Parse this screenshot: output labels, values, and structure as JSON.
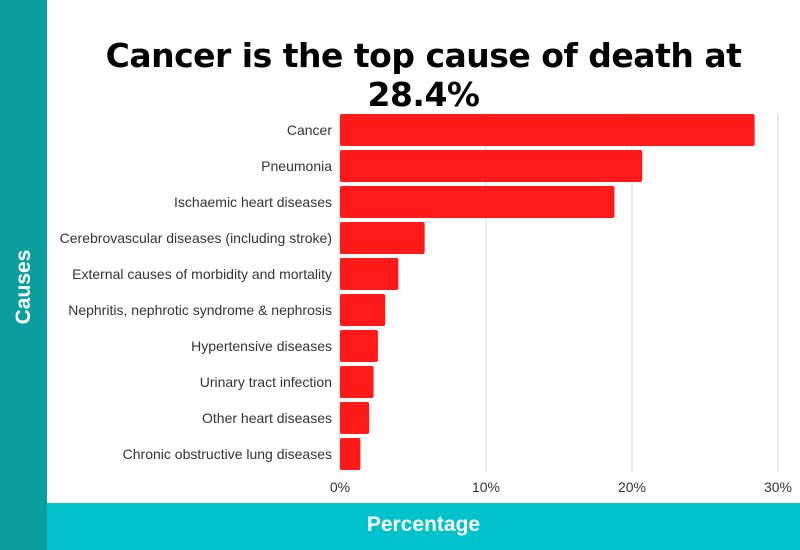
{
  "chart_data": {
    "type": "bar",
    "orientation": "horizontal",
    "title": "Cancer is the top cause of death at 28.4%",
    "xlabel": "Percentage",
    "ylabel": "Causes",
    "categories": [
      "Cancer",
      "Pneumonia",
      "Ischaemic heart diseases",
      "Cerebrovascular diseases (including stroke)",
      "External causes of morbidity and mortality",
      "Nephritis, nephrotic syndrome & nephrosis",
      "Hypertensive diseases",
      "Urinary tract infection",
      "Other heart diseases",
      "Chronic obstructive lung diseases"
    ],
    "values": [
      28.4,
      20.7,
      18.8,
      5.8,
      4.0,
      3.1,
      2.6,
      2.3,
      2.0,
      1.4
    ],
    "xlim": [
      0,
      30
    ],
    "xticks": [
      0,
      10,
      20,
      30
    ],
    "xtick_labels": [
      "0%",
      "10%",
      "20%",
      "30%"
    ],
    "grid": true,
    "bar_color": "#ff1a1a",
    "accent_colors": {
      "left_band": "#0a9e9e",
      "bottom_band": "#00c2ca"
    }
  }
}
